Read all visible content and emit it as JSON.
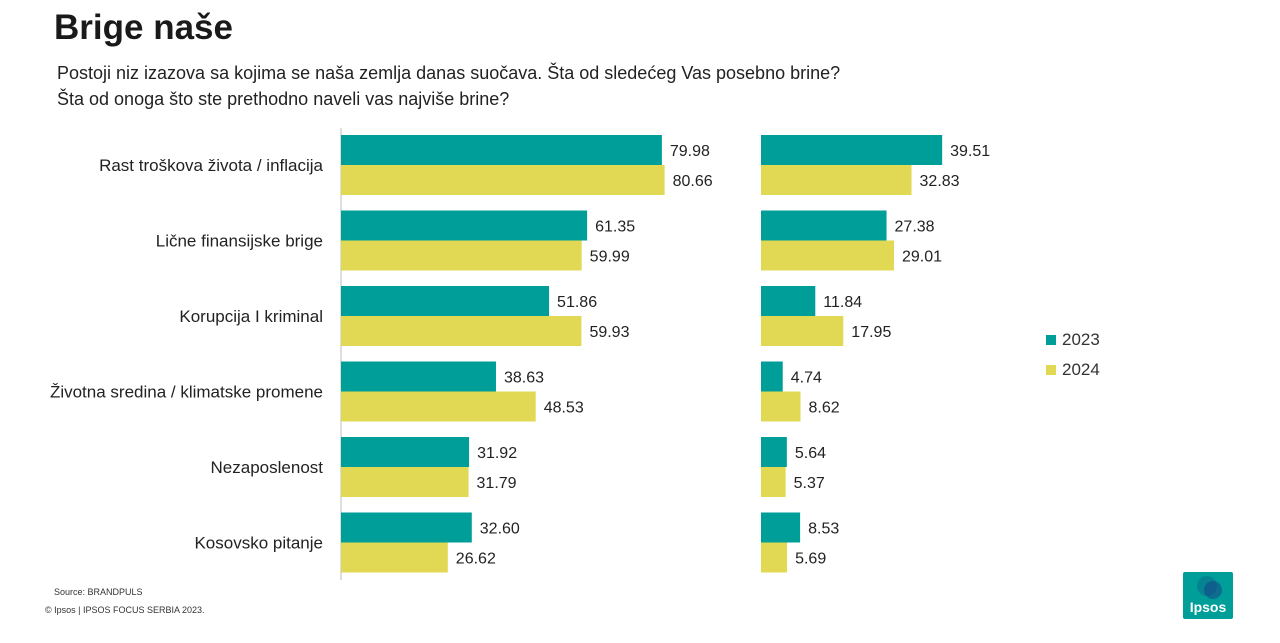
{
  "header": {
    "title": "Brige naše",
    "subtitle_line1": "Postoji niz izazova sa kojima se naša zemlja danas suočava.  Šta od sledećeg Vas posebno brine?",
    "subtitle_line2": "Šta od onoga što ste prethodno naveli vas najviše brine?"
  },
  "chart_data": {
    "type": "bar",
    "orientation": "horizontal",
    "categories": [
      "Rast troškova života / inflacija",
      "Lične finansijske brige",
      "Korupcija I kriminal",
      "Životna sredina / klimatske promene",
      "Nezaposlenost",
      "Kosovsko pitanje"
    ],
    "panels": [
      {
        "series": [
          {
            "name": "2023",
            "color": "#009e98",
            "values": [
              "79.98",
              "61.35",
              "51.86",
              "38.63",
              "31.92",
              "32.60"
            ]
          },
          {
            "name": "2024",
            "color": "#e1d954",
            "values": [
              "80.66",
              "59.99",
              "59.93",
              "48.53",
              "31.79",
              "26.62"
            ]
          }
        ]
      },
      {
        "series": [
          {
            "name": "2023",
            "color": "#009e98",
            "values": [
              "39.51",
              "27.38",
              "11.84",
              "4.74",
              "5.64",
              "8.53"
            ]
          },
          {
            "name": "2024",
            "color": "#e1d954",
            "values": [
              "32.83",
              "29.01",
              "17.95",
              "8.62",
              "5.37",
              "5.69"
            ]
          }
        ]
      }
    ],
    "legend": {
      "position": "right",
      "entries": [
        "2023",
        "2024"
      ]
    },
    "grid": false
  },
  "footer": {
    "source": "Source: BRANDPULS",
    "copyright": "© Ipsos | IPSOS FOCUS SERBIA 2023."
  },
  "logo": {
    "text": "Ipsos",
    "color": "#009e98"
  }
}
